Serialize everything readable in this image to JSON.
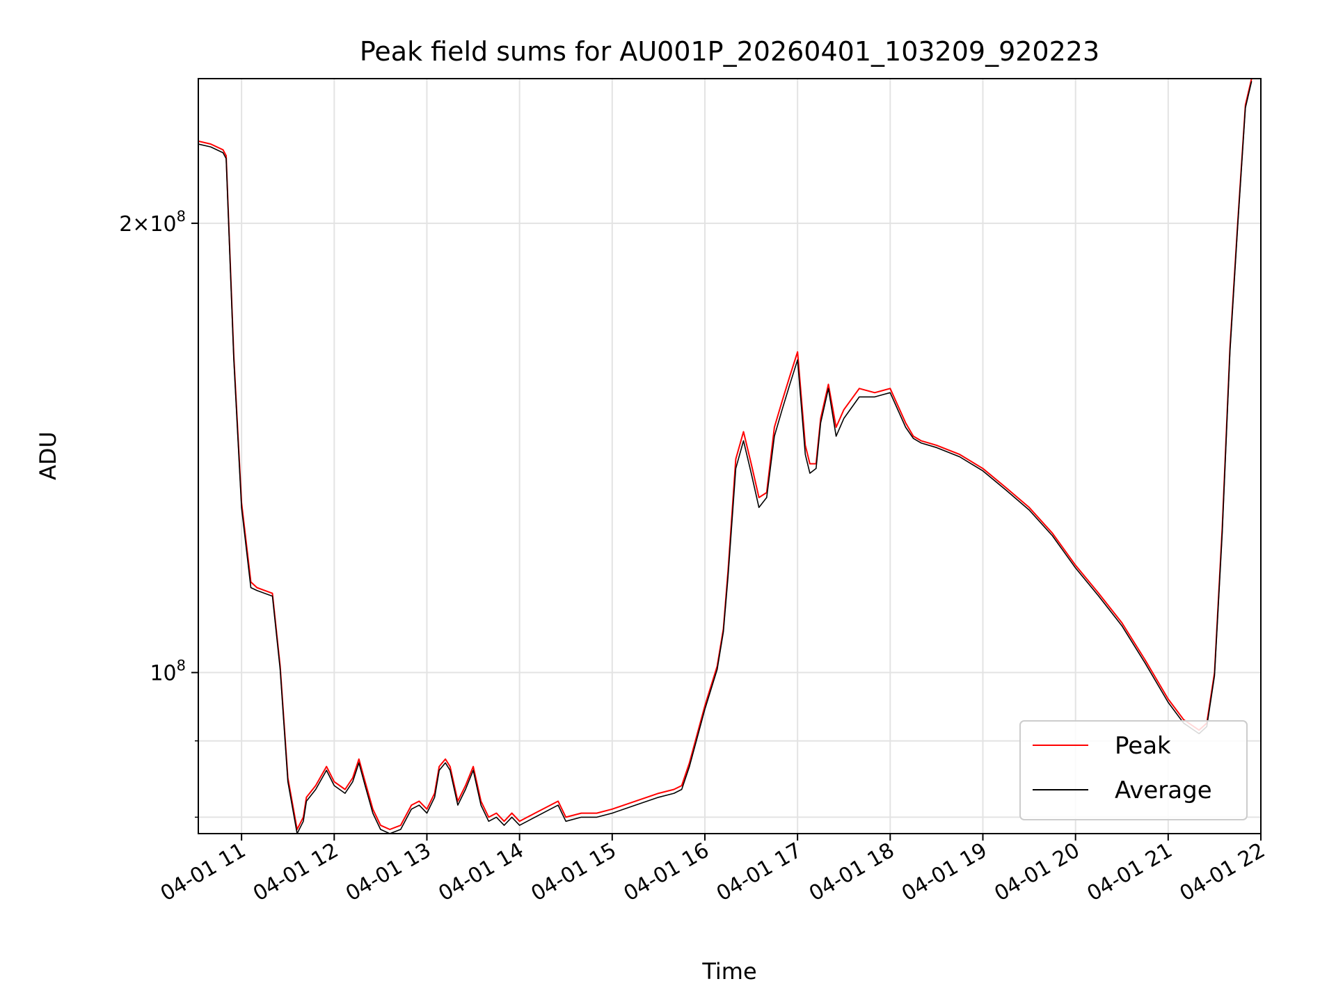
{
  "chart_data": {
    "type": "line",
    "title": "Peak field sums for AU001P_20260401_103209_920223",
    "xlabel": "Time",
    "ylabel": "ADU",
    "yscale": "log",
    "xlim": [
      "2026-04-01 10:32",
      "2026-04-01 22:00"
    ],
    "ylim": [
      78000000,
      250000000
    ],
    "grid": true,
    "legend": {
      "placement": "lower-right",
      "entries": [
        "Peak",
        "Average"
      ]
    },
    "colors": {
      "Peak": "#ff0000",
      "Average": "#000000"
    },
    "x_ticks": [
      "04-01 11",
      "04-01 12",
      "04-01 13",
      "04-01 14",
      "04-01 15",
      "04-01 16",
      "04-01 17",
      "04-01 18",
      "04-01 19",
      "04-01 20",
      "04-01 21",
      "04-01 22"
    ],
    "x_tick_times": [
      "2026-04-01 11:00",
      "2026-04-01 12:00",
      "2026-04-01 13:00",
      "2026-04-01 14:00",
      "2026-04-01 15:00",
      "2026-04-01 16:00",
      "2026-04-01 17:00",
      "2026-04-01 18:00",
      "2026-04-01 19:00",
      "2026-04-01 20:00",
      "2026-04-01 21:00",
      "2026-04-01 22:00"
    ],
    "y_major_ticks": [
      {
        "value": 100000000,
        "label": "10",
        "exp": "8",
        "prefix": ""
      },
      {
        "value": 200000000,
        "label": "10",
        "exp": "8",
        "prefix": "2×"
      }
    ],
    "y_minor_gridlines": [
      80000000,
      90000000
    ],
    "x": [
      "2026-04-01 10:32",
      "2026-04-01 10:40",
      "2026-04-01 10:48",
      "2026-04-01 10:50",
      "2026-04-01 10:55",
      "2026-04-01 11:00",
      "2026-04-01 11:06",
      "2026-04-01 11:10",
      "2026-04-01 11:20",
      "2026-04-01 11:25",
      "2026-04-01 11:30",
      "2026-04-01 11:36",
      "2026-04-01 11:40",
      "2026-04-01 11:42",
      "2026-04-01 11:48",
      "2026-04-01 11:55",
      "2026-04-01 12:00",
      "2026-04-01 12:07",
      "2026-04-01 12:12",
      "2026-04-01 12:16",
      "2026-04-01 12:20",
      "2026-04-01 12:25",
      "2026-04-01 12:30",
      "2026-04-01 12:36",
      "2026-04-01 12:43",
      "2026-04-01 12:50",
      "2026-04-01 12:55",
      "2026-04-01 13:00",
      "2026-04-01 13:05",
      "2026-04-01 13:08",
      "2026-04-01 13:12",
      "2026-04-01 13:15",
      "2026-04-01 13:20",
      "2026-04-01 13:25",
      "2026-04-01 13:30",
      "2026-04-01 13:35",
      "2026-04-01 13:40",
      "2026-04-01 13:45",
      "2026-04-01 13:50",
      "2026-04-01 13:55",
      "2026-04-01 14:00",
      "2026-04-01 14:10",
      "2026-04-01 14:20",
      "2026-04-01 14:25",
      "2026-04-01 14:30",
      "2026-04-01 14:40",
      "2026-04-01 14:50",
      "2026-04-01 15:00",
      "2026-04-01 15:15",
      "2026-04-01 15:30",
      "2026-04-01 15:40",
      "2026-04-01 15:45",
      "2026-04-01 15:50",
      "2026-04-01 16:00",
      "2026-04-01 16:08",
      "2026-04-01 16:12",
      "2026-04-01 16:15",
      "2026-04-01 16:20",
      "2026-04-01 16:25",
      "2026-04-01 16:30",
      "2026-04-01 16:35",
      "2026-04-01 16:40",
      "2026-04-01 16:45",
      "2026-04-01 16:50",
      "2026-04-01 16:55",
      "2026-04-01 17:00",
      "2026-04-01 17:05",
      "2026-04-01 17:08",
      "2026-04-01 17:12",
      "2026-04-01 17:15",
      "2026-04-01 17:20",
      "2026-04-01 17:25",
      "2026-04-01 17:30",
      "2026-04-01 17:40",
      "2026-04-01 17:50",
      "2026-04-01 18:00",
      "2026-04-01 18:10",
      "2026-04-01 18:15",
      "2026-04-01 18:20",
      "2026-04-01 18:30",
      "2026-04-01 18:45",
      "2026-04-01 19:00",
      "2026-04-01 19:15",
      "2026-04-01 19:30",
      "2026-04-01 19:45",
      "2026-04-01 20:00",
      "2026-04-01 20:15",
      "2026-04-01 20:30",
      "2026-04-01 20:45",
      "2026-04-01 21:00",
      "2026-04-01 21:10",
      "2026-04-01 21:20",
      "2026-04-01 21:25",
      "2026-04-01 21:30",
      "2026-04-01 21:35",
      "2026-04-01 21:40",
      "2026-04-01 21:45",
      "2026-04-01 21:50",
      "2026-04-01 21:54"
    ],
    "series": [
      {
        "name": "Peak",
        "values": [
          227000000,
          226000000,
          224000000,
          222000000,
          163000000,
          130000000,
          115000000,
          114000000,
          113000000,
          101000000,
          85000000,
          78500000,
          80000000,
          82500000,
          84000000,
          86500000,
          84500000,
          83500000,
          85000000,
          87500000,
          84500000,
          81000000,
          79000000,
          78500000,
          79000000,
          81500000,
          82000000,
          81000000,
          83000000,
          86500000,
          87500000,
          86500000,
          82000000,
          84000000,
          86500000,
          82000000,
          80000000,
          80500000,
          79500000,
          80500000,
          79500000,
          80500000,
          81500000,
          82000000,
          80000000,
          80500000,
          80500000,
          81000000,
          82000000,
          83000000,
          83500000,
          84000000,
          87000000,
          95000000,
          101000000,
          107000000,
          117000000,
          139000000,
          145000000,
          138000000,
          131000000,
          132000000,
          146000000,
          152000000,
          158000000,
          164000000,
          142000000,
          138000000,
          138000000,
          148000000,
          156000000,
          146000000,
          150000000,
          155000000,
          154000000,
          155000000,
          147000000,
          144000000,
          143000000,
          142000000,
          140000000,
          137000000,
          133000000,
          129000000,
          124000000,
          118000000,
          113000000,
          108000000,
          102000000,
          96000000,
          93000000,
          91500000,
          92500000,
          100000000,
          125000000,
          165000000,
          200000000,
          240000000,
          250000000
        ]
      },
      {
        "name": "Average",
        "values": [
          226000000,
          225000000,
          223000000,
          221000000,
          162000000,
          129000000,
          114000000,
          113500000,
          112500000,
          100500000,
          84500000,
          78000000,
          79500000,
          82000000,
          83500000,
          86000000,
          84000000,
          83000000,
          84500000,
          87000000,
          84000000,
          80500000,
          78500000,
          78000000,
          78500000,
          81000000,
          81500000,
          80500000,
          82500000,
          86000000,
          87000000,
          86000000,
          81500000,
          83500000,
          86000000,
          81500000,
          79500000,
          80000000,
          79000000,
          80000000,
          79000000,
          80000000,
          81000000,
          81500000,
          79500000,
          80000000,
          80000000,
          80500000,
          81500000,
          82500000,
          83000000,
          83500000,
          86500000,
          94500000,
          100500000,
          106500000,
          116000000,
          137000000,
          143000000,
          136000000,
          129000000,
          131000000,
          144000000,
          150000000,
          156000000,
          162000000,
          140000000,
          136000000,
          137000000,
          147000000,
          155000000,
          144000000,
          148000000,
          153000000,
          153000000,
          154000000,
          146000000,
          143500000,
          142500000,
          141500000,
          139500000,
          136500000,
          132500000,
          128500000,
          123500000,
          117500000,
          112500000,
          107500000,
          101500000,
          95500000,
          92500000,
          91000000,
          92000000,
          99500000,
          124000000,
          164000000,
          199000000,
          239000000,
          249000000
        ]
      }
    ]
  }
}
